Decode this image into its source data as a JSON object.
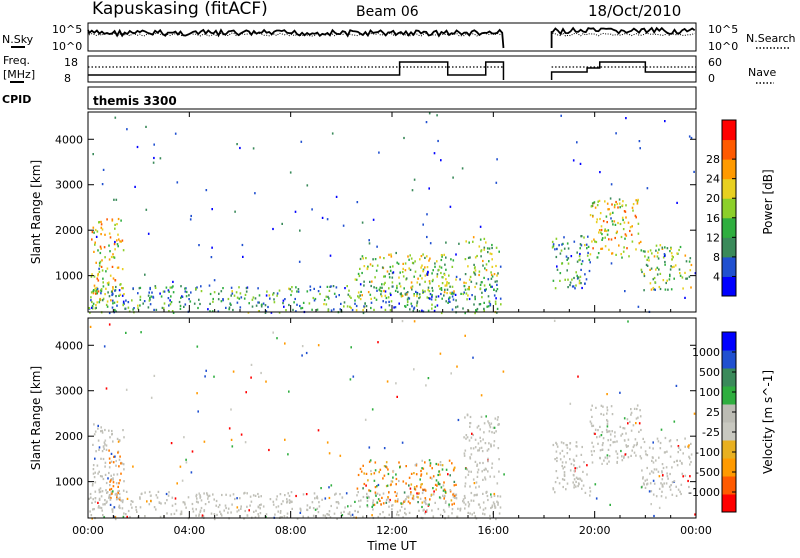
{
  "header": {
    "station": "Kapuskasing (fitACF)",
    "beam": "Beam 06",
    "date": "18/Oct/2010"
  },
  "top_panels": {
    "nsky_label": "N.Sky",
    "nsky_ticks": [
      "10^5",
      "10^0"
    ],
    "nsearch_label": "N.Search",
    "freq_label_line1": "Freq.",
    "freq_label_line2": "[MHz]",
    "freq_ticks": [
      "18",
      "8"
    ],
    "nave_ticks": [
      "60",
      "0"
    ],
    "nave_label": "Nave",
    "cpid_label": "CPID",
    "cpid_value": "themis 3300"
  },
  "colors": {
    "power_scale": [
      "#0000ff",
      "#2050d0",
      "#3a8a5a",
      "#2fae3f",
      "#8ccf2a",
      "#e8d020",
      "#ff9a00",
      "#ff5a00",
      "#ff0000"
    ],
    "velocity_scale": [
      "#ff0000",
      "#ff5a00",
      "#ff9a00",
      "#e8b020",
      "#c8c8c0",
      "#bcbcb4",
      "#2fae3f",
      "#3a8a5a",
      "#2050d0",
      "#0000ff"
    ],
    "ground_scatter": "#c0c0b8"
  },
  "chart_data": [
    {
      "type": "heatmap",
      "title": "Power",
      "xlabel": "Time UT",
      "ylabel": "Slant Range [km]",
      "x_ticks": [
        "00:00",
        "04:00",
        "08:00",
        "12:00",
        "16:00",
        "20:00",
        "00:00"
      ],
      "y_ticks": [
        1000,
        2000,
        3000,
        4000
      ],
      "ylim": [
        200,
        4600
      ],
      "xlim": [
        0,
        24
      ],
      "colorbar_label": "Power [dB]",
      "colorbar_ticks": [
        4,
        8,
        12,
        16,
        20,
        24,
        28
      ],
      "data_gaps_hours": [
        [
          16.4,
          18.3
        ]
      ],
      "scatter_regions": [
        {
          "t": [
            0.1,
            1.4
          ],
          "r": [
            400,
            2300
          ],
          "v": 18
        },
        {
          "t": [
            0.0,
            16.3
          ],
          "r": [
            200,
            800
          ],
          "v": 10
        },
        {
          "t": [
            10.5,
            14.5
          ],
          "r": [
            500,
            1500
          ],
          "v": 15
        },
        {
          "t": [
            14.8,
            16.2
          ],
          "r": [
            700,
            1900
          ],
          "v": 14
        },
        {
          "t": [
            18.3,
            19.8
          ],
          "r": [
            700,
            1900
          ],
          "v": 10
        },
        {
          "t": [
            19.8,
            21.8
          ],
          "r": [
            1400,
            2700
          ],
          "v": 18
        },
        {
          "t": [
            21.8,
            23.8
          ],
          "r": [
            700,
            1700
          ],
          "v": 14
        }
      ]
    },
    {
      "type": "heatmap",
      "title": "Velocity",
      "xlabel": "Time UT",
      "ylabel": "Slant Range [km]",
      "x_ticks": [
        "00:00",
        "04:00",
        "08:00",
        "12:00",
        "16:00",
        "20:00",
        "00:00"
      ],
      "y_ticks": [
        1000,
        2000,
        3000,
        4000
      ],
      "ylim": [
        200,
        4600
      ],
      "xlim": [
        0,
        24
      ],
      "colorbar_label": "Velocity [m s^-1]",
      "colorbar_ticks": [
        1000,
        500,
        100,
        25,
        -25,
        -100,
        -500,
        -1000
      ],
      "data_gaps_hours": [
        [
          16.4,
          18.3
        ]
      ],
      "scatter_regions": [
        {
          "t": [
            0.1,
            1.4
          ],
          "r": [
            400,
            2300
          ],
          "v": 0
        },
        {
          "t": [
            0.8,
            1.3
          ],
          "r": [
            600,
            1800
          ],
          "v": -300
        },
        {
          "t": [
            0.0,
            16.3
          ],
          "r": [
            200,
            800
          ],
          "v": 0
        },
        {
          "t": [
            10.5,
            14.5
          ],
          "r": [
            500,
            1500
          ],
          "v": -80
        },
        {
          "t": [
            14.8,
            16.2
          ],
          "r": [
            700,
            2500
          ],
          "v": 0
        },
        {
          "t": [
            18.3,
            19.8
          ],
          "r": [
            700,
            1900
          ],
          "v": 0
        },
        {
          "t": [
            19.8,
            21.8
          ],
          "r": [
            1400,
            2700
          ],
          "v": 0
        },
        {
          "t": [
            21.8,
            23.8
          ],
          "r": [
            700,
            2000
          ],
          "v": 0
        }
      ]
    }
  ]
}
